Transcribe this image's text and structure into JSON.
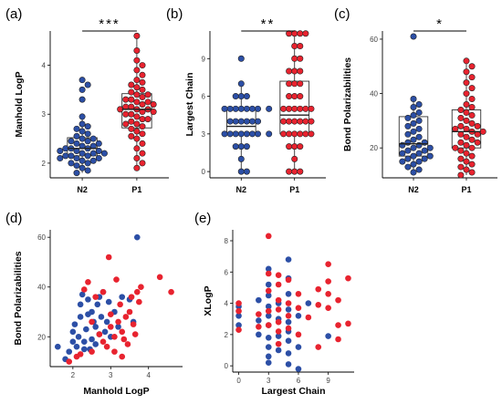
{
  "colors": {
    "N2": "#2c4fa6",
    "P1": "#e8232f",
    "stroke": "#222222",
    "axis": "#000000"
  },
  "chart_data": [
    {
      "type": "box",
      "panel": "(a)",
      "ylabel": "Manhold LogP",
      "xlabel": "",
      "categories": [
        "N2",
        "P1"
      ],
      "ylim": [
        1.7,
        4.7
      ],
      "yticks": [
        2,
        3,
        4
      ],
      "significance": "***",
      "boxes": [
        {
          "q1": 2.15,
          "median": 2.3,
          "q3": 2.52,
          "lo": 1.8,
          "hi": 2.95
        },
        {
          "q1": 2.72,
          "median": 3.1,
          "q3": 3.42,
          "lo": 1.9,
          "hi": 4.6
        }
      ],
      "series": [
        {
          "name": "N2",
          "values": [
            1.8,
            1.85,
            1.9,
            1.95,
            2.0,
            2.0,
            2.05,
            2.05,
            2.1,
            2.1,
            2.1,
            2.15,
            2.15,
            2.15,
            2.2,
            2.2,
            2.2,
            2.25,
            2.25,
            2.25,
            2.3,
            2.3,
            2.3,
            2.35,
            2.35,
            2.4,
            2.4,
            2.45,
            2.45,
            2.5,
            2.5,
            2.55,
            2.6,
            2.65,
            2.7,
            2.75,
            2.8,
            2.95,
            3.3,
            3.5,
            3.6,
            3.7
          ]
        },
        {
          "name": "P1",
          "values": [
            1.9,
            2.0,
            2.1,
            2.2,
            2.3,
            2.4,
            2.5,
            2.55,
            2.6,
            2.65,
            2.7,
            2.75,
            2.8,
            2.8,
            2.85,
            2.9,
            2.9,
            2.95,
            3.0,
            3.0,
            3.05,
            3.05,
            3.1,
            3.1,
            3.1,
            3.15,
            3.15,
            3.2,
            3.2,
            3.25,
            3.25,
            3.3,
            3.3,
            3.35,
            3.4,
            3.4,
            3.45,
            3.5,
            3.55,
            3.6,
            3.65,
            3.7,
            3.8,
            3.9,
            4.0,
            4.1,
            4.3,
            4.6
          ]
        }
      ]
    },
    {
      "type": "box",
      "panel": "(b)",
      "ylabel": "Largest Chain",
      "xlabel": "",
      "categories": [
        "N2",
        "P1"
      ],
      "ylim": [
        -0.5,
        11.2
      ],
      "yticks": [
        0,
        3,
        6,
        9
      ],
      "significance": "**",
      "boxes": [
        {
          "q1": 3,
          "median": 3.6,
          "q3": 5,
          "lo": 0,
          "hi": 7
        },
        {
          "q1": 3,
          "median": 4.5,
          "q3": 7.2,
          "lo": 0,
          "hi": 11
        }
      ],
      "series": [
        {
          "name": "N2",
          "values": [
            0,
            0,
            1,
            2,
            2,
            2,
            3,
            3,
            3,
            3,
            3,
            3,
            3,
            3,
            4,
            4,
            4,
            4,
            4,
            4,
            5,
            5,
            5,
            5,
            5,
            5,
            5,
            5,
            6,
            6,
            6,
            7,
            9
          ]
        },
        {
          "name": "P1",
          "values": [
            0,
            0,
            0,
            1,
            2,
            2,
            2,
            3,
            3,
            3,
            3,
            3,
            3,
            4,
            4,
            4,
            4,
            4,
            4,
            5,
            5,
            5,
            5,
            5,
            5,
            6,
            6,
            6,
            7,
            7,
            7,
            8,
            8,
            8,
            9,
            9,
            10,
            10,
            11,
            11,
            11,
            11
          ]
        }
      ]
    },
    {
      "type": "box",
      "panel": "(c)",
      "ylabel": "Bond Polarizabilities",
      "xlabel": "",
      "categories": [
        "N2",
        "P1"
      ],
      "ylim": [
        9,
        63
      ],
      "yticks": [
        20,
        40,
        60
      ],
      "significance": "*",
      "boxes": [
        {
          "q1": 17,
          "median": 21.5,
          "q3": 31.5,
          "lo": 11,
          "hi": 38
        },
        {
          "q1": 20,
          "median": 26,
          "q3": 34,
          "lo": 10,
          "hi": 52
        }
      ],
      "series": [
        {
          "name": "N2",
          "values": [
            11,
            12,
            13,
            14,
            15,
            15,
            16,
            16,
            17,
            17,
            18,
            18,
            19,
            19,
            20,
            20,
            21,
            21,
            22,
            22,
            23,
            24,
            25,
            26,
            27,
            28,
            29,
            30,
            31,
            32,
            33,
            35,
            36,
            38,
            61
          ]
        },
        {
          "name": "P1",
          "values": [
            10,
            11,
            12,
            13,
            14,
            15,
            16,
            17,
            18,
            19,
            20,
            20,
            21,
            22,
            22,
            23,
            24,
            25,
            25,
            26,
            26,
            27,
            27,
            28,
            28,
            29,
            30,
            31,
            32,
            33,
            34,
            35,
            36,
            38,
            40,
            42,
            44,
            46,
            48,
            50,
            52
          ]
        }
      ]
    },
    {
      "type": "scatter",
      "panel": "(d)",
      "xlabel": "Manhold LogP",
      "ylabel": "Bond Polarizabilities",
      "xlim": [
        1.4,
        4.9
      ],
      "ylim": [
        8,
        63
      ],
      "xticks": [
        2,
        3,
        4
      ],
      "yticks": [
        20,
        40,
        60
      ],
      "series": [
        {
          "name": "N2",
          "points": [
            [
              1.6,
              16
            ],
            [
              1.8,
              11
            ],
            [
              1.9,
              14
            ],
            [
              2.0,
              18
            ],
            [
              2.0,
              22
            ],
            [
              2.05,
              25
            ],
            [
              2.1,
              16
            ],
            [
              2.15,
              20
            ],
            [
              2.2,
              28
            ],
            [
              2.2,
              33
            ],
            [
              2.25,
              37
            ],
            [
              2.3,
              15
            ],
            [
              2.3,
              18
            ],
            [
              2.35,
              23
            ],
            [
              2.4,
              29
            ],
            [
              2.4,
              35
            ],
            [
              2.45,
              15
            ],
            [
              2.5,
              19
            ],
            [
              2.5,
              30
            ],
            [
              2.55,
              26
            ],
            [
              2.6,
              17
            ],
            [
              2.6,
              24
            ],
            [
              2.65,
              33
            ],
            [
              2.7,
              21
            ],
            [
              2.7,
              36
            ],
            [
              2.75,
              28
            ],
            [
              2.8,
              38
            ],
            [
              2.85,
              22
            ],
            [
              2.9,
              26
            ],
            [
              2.95,
              34
            ],
            [
              3.0,
              20
            ],
            [
              3.1,
              30
            ],
            [
              3.2,
              24
            ],
            [
              3.3,
              36
            ],
            [
              3.5,
              35
            ],
            [
              3.6,
              26
            ],
            [
              3.7,
              60
            ]
          ]
        },
        {
          "name": "P1",
          "points": [
            [
              1.9,
              10
            ],
            [
              2.1,
              12
            ],
            [
              2.2,
              13
            ],
            [
              2.3,
              39
            ],
            [
              2.4,
              42
            ],
            [
              2.5,
              26
            ],
            [
              2.5,
              14
            ],
            [
              2.6,
              36
            ],
            [
              2.7,
              21
            ],
            [
              2.8,
              38
            ],
            [
              2.8,
              18
            ],
            [
              2.9,
              16
            ],
            [
              2.95,
              52
            ],
            [
              3.0,
              24
            ],
            [
              3.0,
              29
            ],
            [
              3.1,
              20
            ],
            [
              3.1,
              14
            ],
            [
              3.15,
              43
            ],
            [
              3.2,
              26
            ],
            [
              3.25,
              33
            ],
            [
              3.3,
              22
            ],
            [
              3.3,
              12
            ],
            [
              3.35,
              19
            ],
            [
              3.4,
              28
            ],
            [
              3.45,
              17
            ],
            [
              3.5,
              30
            ],
            [
              3.55,
              36
            ],
            [
              3.6,
              25
            ],
            [
              3.65,
              21
            ],
            [
              3.7,
              38
            ],
            [
              3.75,
              34
            ],
            [
              3.8,
              40
            ],
            [
              4.3,
              44
            ],
            [
              4.6,
              38
            ]
          ]
        }
      ]
    },
    {
      "type": "scatter",
      "panel": "(e)",
      "xlabel": "Largest Chain",
      "ylabel": "XLogP",
      "xlim": [
        -0.6,
        11.6
      ],
      "ylim": [
        -0.4,
        8.7
      ],
      "xticks": [
        0,
        3,
        6,
        9
      ],
      "yticks": [
        0,
        2,
        4,
        6,
        8
      ],
      "series": [
        {
          "name": "N2",
          "points": [
            [
              0,
              3.8
            ],
            [
              0,
              2.6
            ],
            [
              0,
              3.2
            ],
            [
              2,
              4.2
            ],
            [
              2,
              2.9
            ],
            [
              2,
              2.0
            ],
            [
              3,
              6.2
            ],
            [
              3,
              5.2
            ],
            [
              3,
              4.5
            ],
            [
              3,
              3.8
            ],
            [
              3,
              3.2
            ],
            [
              3,
              2.6
            ],
            [
              3,
              1.8
            ],
            [
              3,
              1.2
            ],
            [
              3,
              0.6
            ],
            [
              3,
              0.2
            ],
            [
              4,
              4.0
            ],
            [
              4,
              3.0
            ],
            [
              4,
              1.9
            ],
            [
              4,
              1.0
            ],
            [
              5,
              6.8
            ],
            [
              5,
              5.6
            ],
            [
              5,
              4.6
            ],
            [
              5,
              3.6
            ],
            [
              5,
              2.8
            ],
            [
              5,
              2.2
            ],
            [
              5,
              1.6
            ],
            [
              5,
              0.8
            ],
            [
              5,
              0.1
            ],
            [
              6,
              3.2
            ],
            [
              6,
              1.2
            ],
            [
              6,
              -0.2
            ],
            [
              7,
              4.0
            ],
            [
              9,
              1.9
            ]
          ]
        },
        {
          "name": "P1",
          "points": [
            [
              0,
              2.3
            ],
            [
              0,
              3.5
            ],
            [
              0,
              4.0
            ],
            [
              2,
              3.3
            ],
            [
              2,
              2.5
            ],
            [
              3,
              8.3
            ],
            [
              3,
              5.9
            ],
            [
              3,
              4.8
            ],
            [
              3,
              3.5
            ],
            [
              3,
              2.6
            ],
            [
              4,
              5.8
            ],
            [
              4,
              5.2
            ],
            [
              4,
              4.2
            ],
            [
              4,
              3.6
            ],
            [
              4,
              2.8
            ],
            [
              4,
              2.2
            ],
            [
              4,
              1.4
            ],
            [
              5,
              5.5
            ],
            [
              5,
              4.0
            ],
            [
              5,
              3.2
            ],
            [
              5,
              2.4
            ],
            [
              6,
              4.6
            ],
            [
              6,
              3.7
            ],
            [
              6,
              2.0
            ],
            [
              7,
              3.1
            ],
            [
              8,
              4.9
            ],
            [
              8,
              3.9
            ],
            [
              8,
              1.2
            ],
            [
              9,
              6.5
            ],
            [
              9,
              5.4
            ],
            [
              9,
              4.6
            ],
            [
              9,
              3.7
            ],
            [
              10,
              4.2
            ],
            [
              10,
              2.6
            ],
            [
              10,
              1.7
            ],
            [
              11,
              5.6
            ],
            [
              11,
              2.7
            ]
          ]
        }
      ]
    }
  ]
}
